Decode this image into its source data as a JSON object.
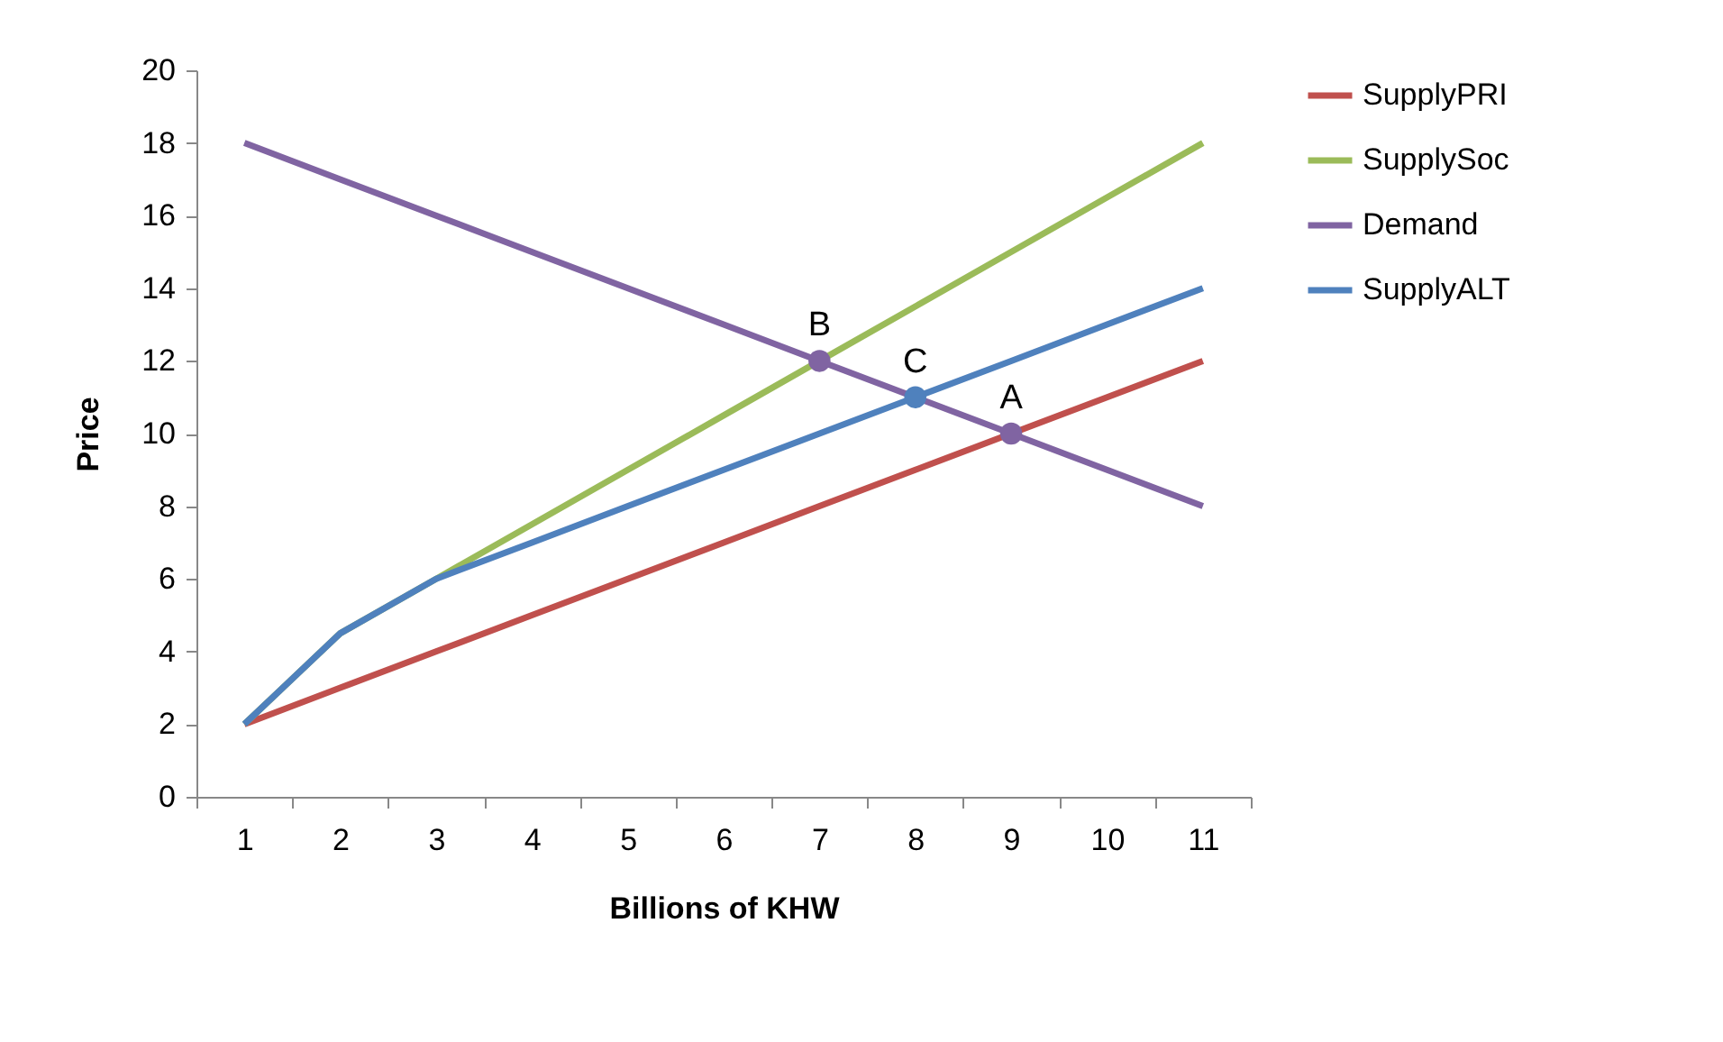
{
  "chart_data": {
    "type": "line",
    "xlabel": "Billions of KHW",
    "ylabel": "Price",
    "categories": [
      "1",
      "2",
      "3",
      "4",
      "5",
      "6",
      "7",
      "8",
      "9",
      "10",
      "11"
    ],
    "series": [
      {
        "name": "SupplyPRI",
        "color": "#c0504d",
        "values": [
          2,
          3,
          4,
          5,
          6,
          7,
          8,
          9,
          10,
          11,
          12
        ]
      },
      {
        "name": "SupplySoc",
        "color": "#9bbb59",
        "values": [
          2,
          4.5,
          6,
          7.5,
          9,
          10.5,
          12,
          13.5,
          15,
          16.5,
          18
        ]
      },
      {
        "name": "Demand",
        "color": "#8064a2",
        "values": [
          18,
          17,
          16,
          15,
          14,
          13,
          12,
          11,
          10,
          9,
          8
        ]
      },
      {
        "name": "SupplyALT",
        "color": "#4f81bd",
        "values": [
          2,
          4.5,
          6,
          7,
          8,
          9,
          10,
          11,
          12,
          13,
          14
        ]
      },
      {
        "type": "scatter",
        "x": [
          "7",
          "8",
          "9"
        ],
        "values": [
          12,
          11,
          10
        ],
        "colors": [
          "#8064a2",
          "#4f81bd",
          "#8064a2"
        ]
      }
    ],
    "annotations": [
      {
        "text": "B",
        "x": "7",
        "y": 12
      },
      {
        "text": "C",
        "x": "8",
        "y": 11
      },
      {
        "text": "A",
        "x": "9",
        "y": 10
      }
    ],
    "ylim": [
      0,
      20
    ],
    "yticks": [
      0,
      2,
      4,
      6,
      8,
      10,
      12,
      14,
      16,
      18,
      20
    ],
    "grid": false,
    "legend": "right",
    "line_style": "solid"
  }
}
